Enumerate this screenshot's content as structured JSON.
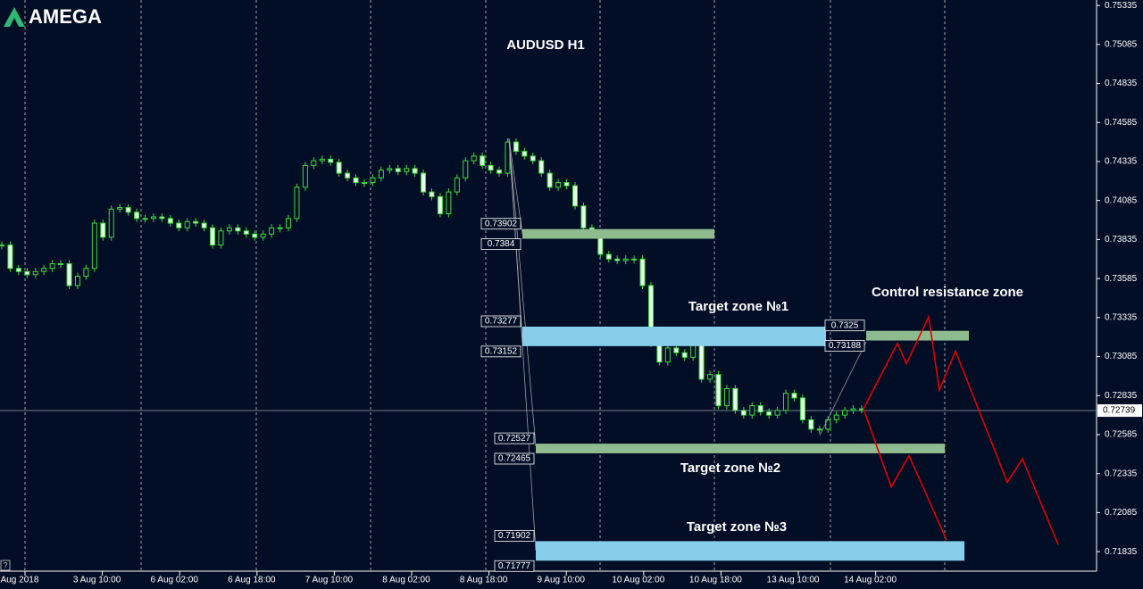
{
  "chart_data": {
    "type": "candlestick",
    "brand": "AMEGA",
    "title": "AUDUSD H1",
    "x_labels": [
      "Aug 2018",
      "3 Aug 10:00",
      "6 Aug 02:00",
      "6 Aug 18:00",
      "7 Aug 10:00",
      "8 Aug 02:00",
      "8 Aug 18:00",
      "9 Aug 10:00",
      "10 Aug 02:00",
      "10 Aug 18:00",
      "13 Aug 10:00",
      "14 Aug 02:00"
    ],
    "ylim": [
      0.7171,
      0.7537
    ],
    "yticks": [
      0.75335,
      0.75085,
      0.74835,
      0.74585,
      0.74335,
      0.74085,
      0.73835,
      0.73585,
      0.73335,
      0.73085,
      0.72835,
      0.72585,
      0.72335,
      0.72085,
      0.71835
    ],
    "closes": [
      0.738,
      0.7365,
      0.7363,
      0.7361,
      0.7363,
      0.7365,
      0.7368,
      0.7368,
      0.7354,
      0.736,
      0.7365,
      0.7394,
      0.7385,
      0.7403,
      0.7404,
      0.7401,
      0.7397,
      0.7397,
      0.7398,
      0.7397,
      0.7394,
      0.7391,
      0.7395,
      0.7394,
      0.7391,
      0.738,
      0.7389,
      0.7391,
      0.7389,
      0.7387,
      0.7385,
      0.7387,
      0.7391,
      0.7391,
      0.7397,
      0.7417,
      0.7431,
      0.7434,
      0.7435,
      0.7433,
      0.7426,
      0.7423,
      0.742,
      0.742,
      0.7423,
      0.7428,
      0.7429,
      0.7427,
      0.7429,
      0.7426,
      0.7414,
      0.7411,
      0.74,
      0.7414,
      0.7423,
      0.7434,
      0.7437,
      0.7431,
      0.7428,
      0.7426,
      0.7446,
      0.744,
      0.7437,
      0.7434,
      0.7426,
      0.7417,
      0.742,
      0.7418,
      0.7405,
      0.7391,
      0.7387,
      0.7374,
      0.7371,
      0.737,
      0.7371,
      0.7371,
      0.7354,
      0.7317,
      0.7305,
      0.7314,
      0.7311,
      0.7308,
      0.7317,
      0.7294,
      0.7297,
      0.7277,
      0.7288,
      0.7274,
      0.7271,
      0.7277,
      0.7273,
      0.7271,
      0.7274,
      0.7285,
      0.7282,
      0.7268,
      0.7262,
      0.7262,
      0.7268,
      0.7271,
      0.7274,
      0.7275,
      0.7275
    ],
    "current_price": 0.72739,
    "zones": [
      {
        "top": 0.73902,
        "bottom": 0.7384,
        "color": "#8fbc8f"
      },
      {
        "label": "Target zone №1",
        "top": 0.73277,
        "bottom": 0.73152,
        "color": "#87ceeb"
      },
      {
        "label": "Control resistance zone",
        "top": 0.7325,
        "bottom": 0.73188,
        "color": "#8fbc8f"
      },
      {
        "label": "Target zone №2",
        "top": 0.72527,
        "bottom": 0.72465,
        "color": "#8fbc8f"
      },
      {
        "label": "Target zone №3",
        "top": 0.71902,
        "bottom": 0.71777,
        "color": "#87ceeb"
      }
    ],
    "forecast": [
      {
        "color": "#e00000",
        "values": [
          0.7275,
          0.7317,
          0.7304,
          0.7334,
          0.7287,
          0.7312,
          0.7228,
          0.7243,
          0.7188
        ]
      },
      {
        "color": "#e00000",
        "values": [
          0.7275,
          0.7225,
          0.7245,
          0.7191
        ]
      }
    ]
  }
}
